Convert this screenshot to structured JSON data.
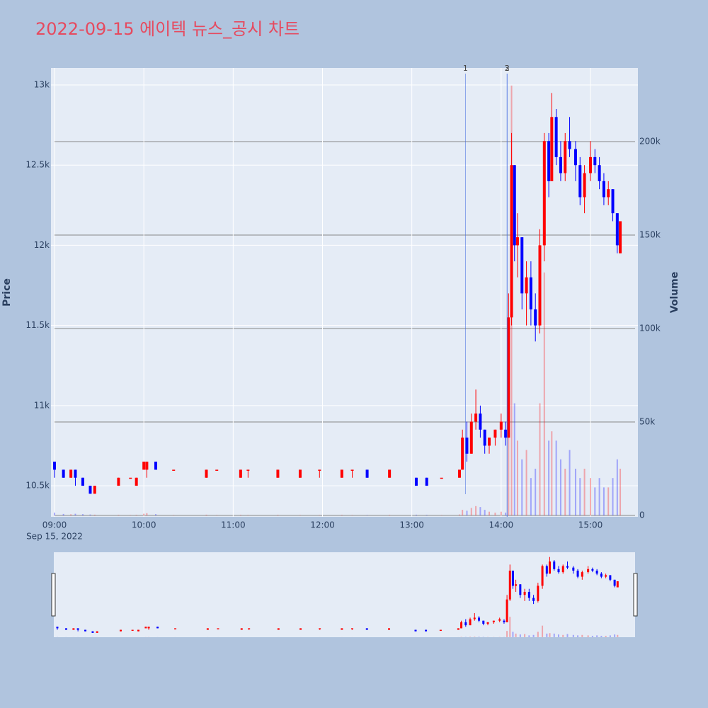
{
  "chart_data": {
    "type": "candlestick",
    "title": "2022-09-15 에이텍 뉴스_공시 차트",
    "ylabel": "Price",
    "y2label": "Volume",
    "xaxis_sublabel": "Sep 15, 2022",
    "xlim": [
      "2022-09-15 08:57:37",
      "2022-09-15 15:31:52"
    ],
    "xticks": [
      {
        "value": "2022-09-15 09:00",
        "label": "09:00"
      },
      {
        "value": "2022-09-15 10:00",
        "label": "10:00"
      },
      {
        "value": "2022-09-15 11:00",
        "label": "11:00"
      },
      {
        "value": "2022-09-15 12:00",
        "label": "12:00"
      },
      {
        "value": "2022-09-15 13:00",
        "label": "13:00"
      },
      {
        "value": "2022-09-15 14:00",
        "label": "14:00"
      },
      {
        "value": "2022-09-15 15:00",
        "label": "15:00"
      }
    ],
    "ylim": [
      10306,
      13106
    ],
    "yticks": [
      {
        "value": 10500,
        "label": "10.5k"
      },
      {
        "value": 11000,
        "label": "11k"
      },
      {
        "value": 11500,
        "label": "11.5k"
      },
      {
        "value": 12000,
        "label": "12k"
      },
      {
        "value": 12500,
        "label": "12.5k"
      },
      {
        "value": 13000,
        "label": "13k"
      }
    ],
    "y2lim": [
      -760,
      239400
    ],
    "y2ticks": [
      0,
      {
        "value": 50000,
        "label": "50k"
      },
      {
        "value": 100000,
        "label": "100k"
      },
      {
        "value": 150000,
        "label": "150k"
      },
      {
        "value": 200000,
        "label": "200k"
      }
    ],
    "grid": true,
    "increasing_color": "#ff0000",
    "decreasing_color": "#0000ff",
    "candles": {
      "x": [
        "2022-09-15 09:00",
        "2022-09-15 09:06",
        "2022-09-15 09:11",
        "2022-09-15 09:14",
        "2022-09-15 09:19",
        "2022-09-15 09:24",
        "2022-09-15 09:27",
        "2022-09-15 09:43",
        "2022-09-15 09:51",
        "2022-09-15 09:55",
        "2022-09-15 10:00",
        "2022-09-15 10:02",
        "2022-09-15 10:08",
        "2022-09-15 10:20",
        "2022-09-15 10:42",
        "2022-09-15 10:49",
        "2022-09-15 11:05",
        "2022-09-15 11:10",
        "2022-09-15 11:30",
        "2022-09-15 11:45",
        "2022-09-15 11:58",
        "2022-09-15 12:13",
        "2022-09-15 12:20",
        "2022-09-15 12:30",
        "2022-09-15 12:45",
        "2022-09-15 13:03",
        "2022-09-15 13:10",
        "2022-09-15 13:20",
        "2022-09-15 13:32",
        "2022-09-15 13:34",
        "2022-09-15 13:37",
        "2022-09-15 13:40",
        "2022-09-15 13:43",
        "2022-09-15 13:46",
        "2022-09-15 13:49",
        "2022-09-15 13:52",
        "2022-09-15 13:56",
        "2022-09-15 14:00",
        "2022-09-15 14:03",
        "2022-09-15 14:05",
        "2022-09-15 14:07",
        "2022-09-15 14:09",
        "2022-09-15 14:11",
        "2022-09-15 14:14",
        "2022-09-15 14:17",
        "2022-09-15 14:20",
        "2022-09-15 14:23",
        "2022-09-15 14:26",
        "2022-09-15 14:29",
        "2022-09-15 14:32",
        "2022-09-15 14:34",
        "2022-09-15 14:37",
        "2022-09-15 14:40",
        "2022-09-15 14:43",
        "2022-09-15 14:46",
        "2022-09-15 14:50",
        "2022-09-15 14:53",
        "2022-09-15 14:56",
        "2022-09-15 15:00",
        "2022-09-15 15:03",
        "2022-09-15 15:06",
        "2022-09-15 15:09",
        "2022-09-15 15:12",
        "2022-09-15 15:15",
        "2022-09-15 15:18",
        "2022-09-15 15:20"
      ],
      "open": [
        10650,
        10600,
        10550,
        10600,
        10550,
        10500,
        10450,
        10500,
        10550,
        10500,
        10600,
        10600,
        10650,
        10600,
        10550,
        10600,
        10550,
        10600,
        10550,
        10550,
        10600,
        10550,
        10600,
        10600,
        10550,
        10550,
        10550,
        10550,
        10550,
        10600,
        10800,
        10700,
        10900,
        10950,
        10850,
        10750,
        10800,
        10850,
        10850,
        10800,
        11550,
        12500,
        12000,
        12050,
        11700,
        11800,
        11600,
        11500,
        12000,
        12650,
        12400,
        12800,
        12550,
        12450,
        12650,
        12600,
        12500,
        12300,
        12450,
        12550,
        12500,
        12400,
        12300,
        12350,
        12200,
        11950
      ],
      "high": [
        10650,
        10600,
        10600,
        10600,
        10550,
        10500,
        10500,
        10550,
        10550,
        10550,
        10650,
        10650,
        10650,
        10600,
        10600,
        10600,
        10600,
        10600,
        10600,
        10600,
        10600,
        10600,
        10600,
        10600,
        10600,
        10550,
        10550,
        10550,
        10600,
        10850,
        10900,
        10950,
        11100,
        11000,
        10850,
        10800,
        10850,
        10950,
        10900,
        11700,
        12700,
        12500,
        12200,
        12050,
        11900,
        11900,
        11700,
        12100,
        12700,
        12700,
        12950,
        12850,
        12650,
        12700,
        12800,
        12650,
        12550,
        12500,
        12650,
        12600,
        12550,
        12450,
        12400,
        12350,
        12200,
        12150
      ],
      "low": [
        10550,
        10550,
        10550,
        10500,
        10500,
        10450,
        10450,
        10500,
        10550,
        10500,
        10600,
        10550,
        10600,
        10600,
        10550,
        10600,
        10550,
        10550,
        10550,
        10550,
        10550,
        10550,
        10550,
        10550,
        10550,
        10500,
        10500,
        10550,
        10550,
        10600,
        10650,
        10700,
        10850,
        10800,
        10700,
        10700,
        10750,
        10800,
        10750,
        10800,
        11500,
        11900,
        11800,
        11600,
        11500,
        11500,
        11400,
        11450,
        11900,
        12300,
        12400,
        12500,
        12400,
        12400,
        12550,
        12400,
        12250,
        12200,
        12400,
        12450,
        12350,
        12250,
        12250,
        12150,
        11950,
        11950
      ],
      "close": [
        10600,
        10550,
        10600,
        10550,
        10500,
        10450,
        10500,
        10550,
        10550,
        10550,
        10650,
        10650,
        10600,
        10600,
        10600,
        10600,
        10600,
        10600,
        10600,
        10600,
        10600,
        10600,
        10600,
        10550,
        10600,
        10500,
        10500,
        10550,
        10600,
        10800,
        10700,
        10900,
        10950,
        10850,
        10750,
        10800,
        10850,
        10900,
        10800,
        11550,
        12500,
        12000,
        12050,
        11700,
        11800,
        11600,
        11500,
        12000,
        12650,
        12400,
        12800,
        12550,
        12450,
        12650,
        12600,
        12500,
        12300,
        12450,
        12550,
        12500,
        12400,
        12300,
        12350,
        12200,
        12000,
        12150
      ]
    },
    "volume": {
      "axis": "y2",
      "values": [
        1500,
        800,
        600,
        900,
        700,
        500,
        400,
        300,
        200,
        300,
        900,
        1200,
        700,
        200,
        400,
        200,
        300,
        200,
        300,
        200,
        200,
        300,
        200,
        200,
        300,
        400,
        300,
        200,
        500,
        3000,
        2500,
        4000,
        5000,
        4500,
        3000,
        2000,
        1500,
        2000,
        1500,
        70000,
        230000,
        60000,
        40000,
        30000,
        35000,
        20000,
        25000,
        60000,
        130000,
        40000,
        45000,
        40000,
        30000,
        25000,
        35000,
        25000,
        20000,
        25000,
        20000,
        15000,
        20000,
        15000,
        15000,
        20000,
        30000,
        25000
      ]
    },
    "annotations": [
      {
        "x": "2022-09-15 13:36",
        "text": "1"
      },
      {
        "x": "2022-09-15 14:04",
        "text": "2"
      },
      {
        "x": "2022-09-15 14:04",
        "text": "3"
      }
    ]
  }
}
